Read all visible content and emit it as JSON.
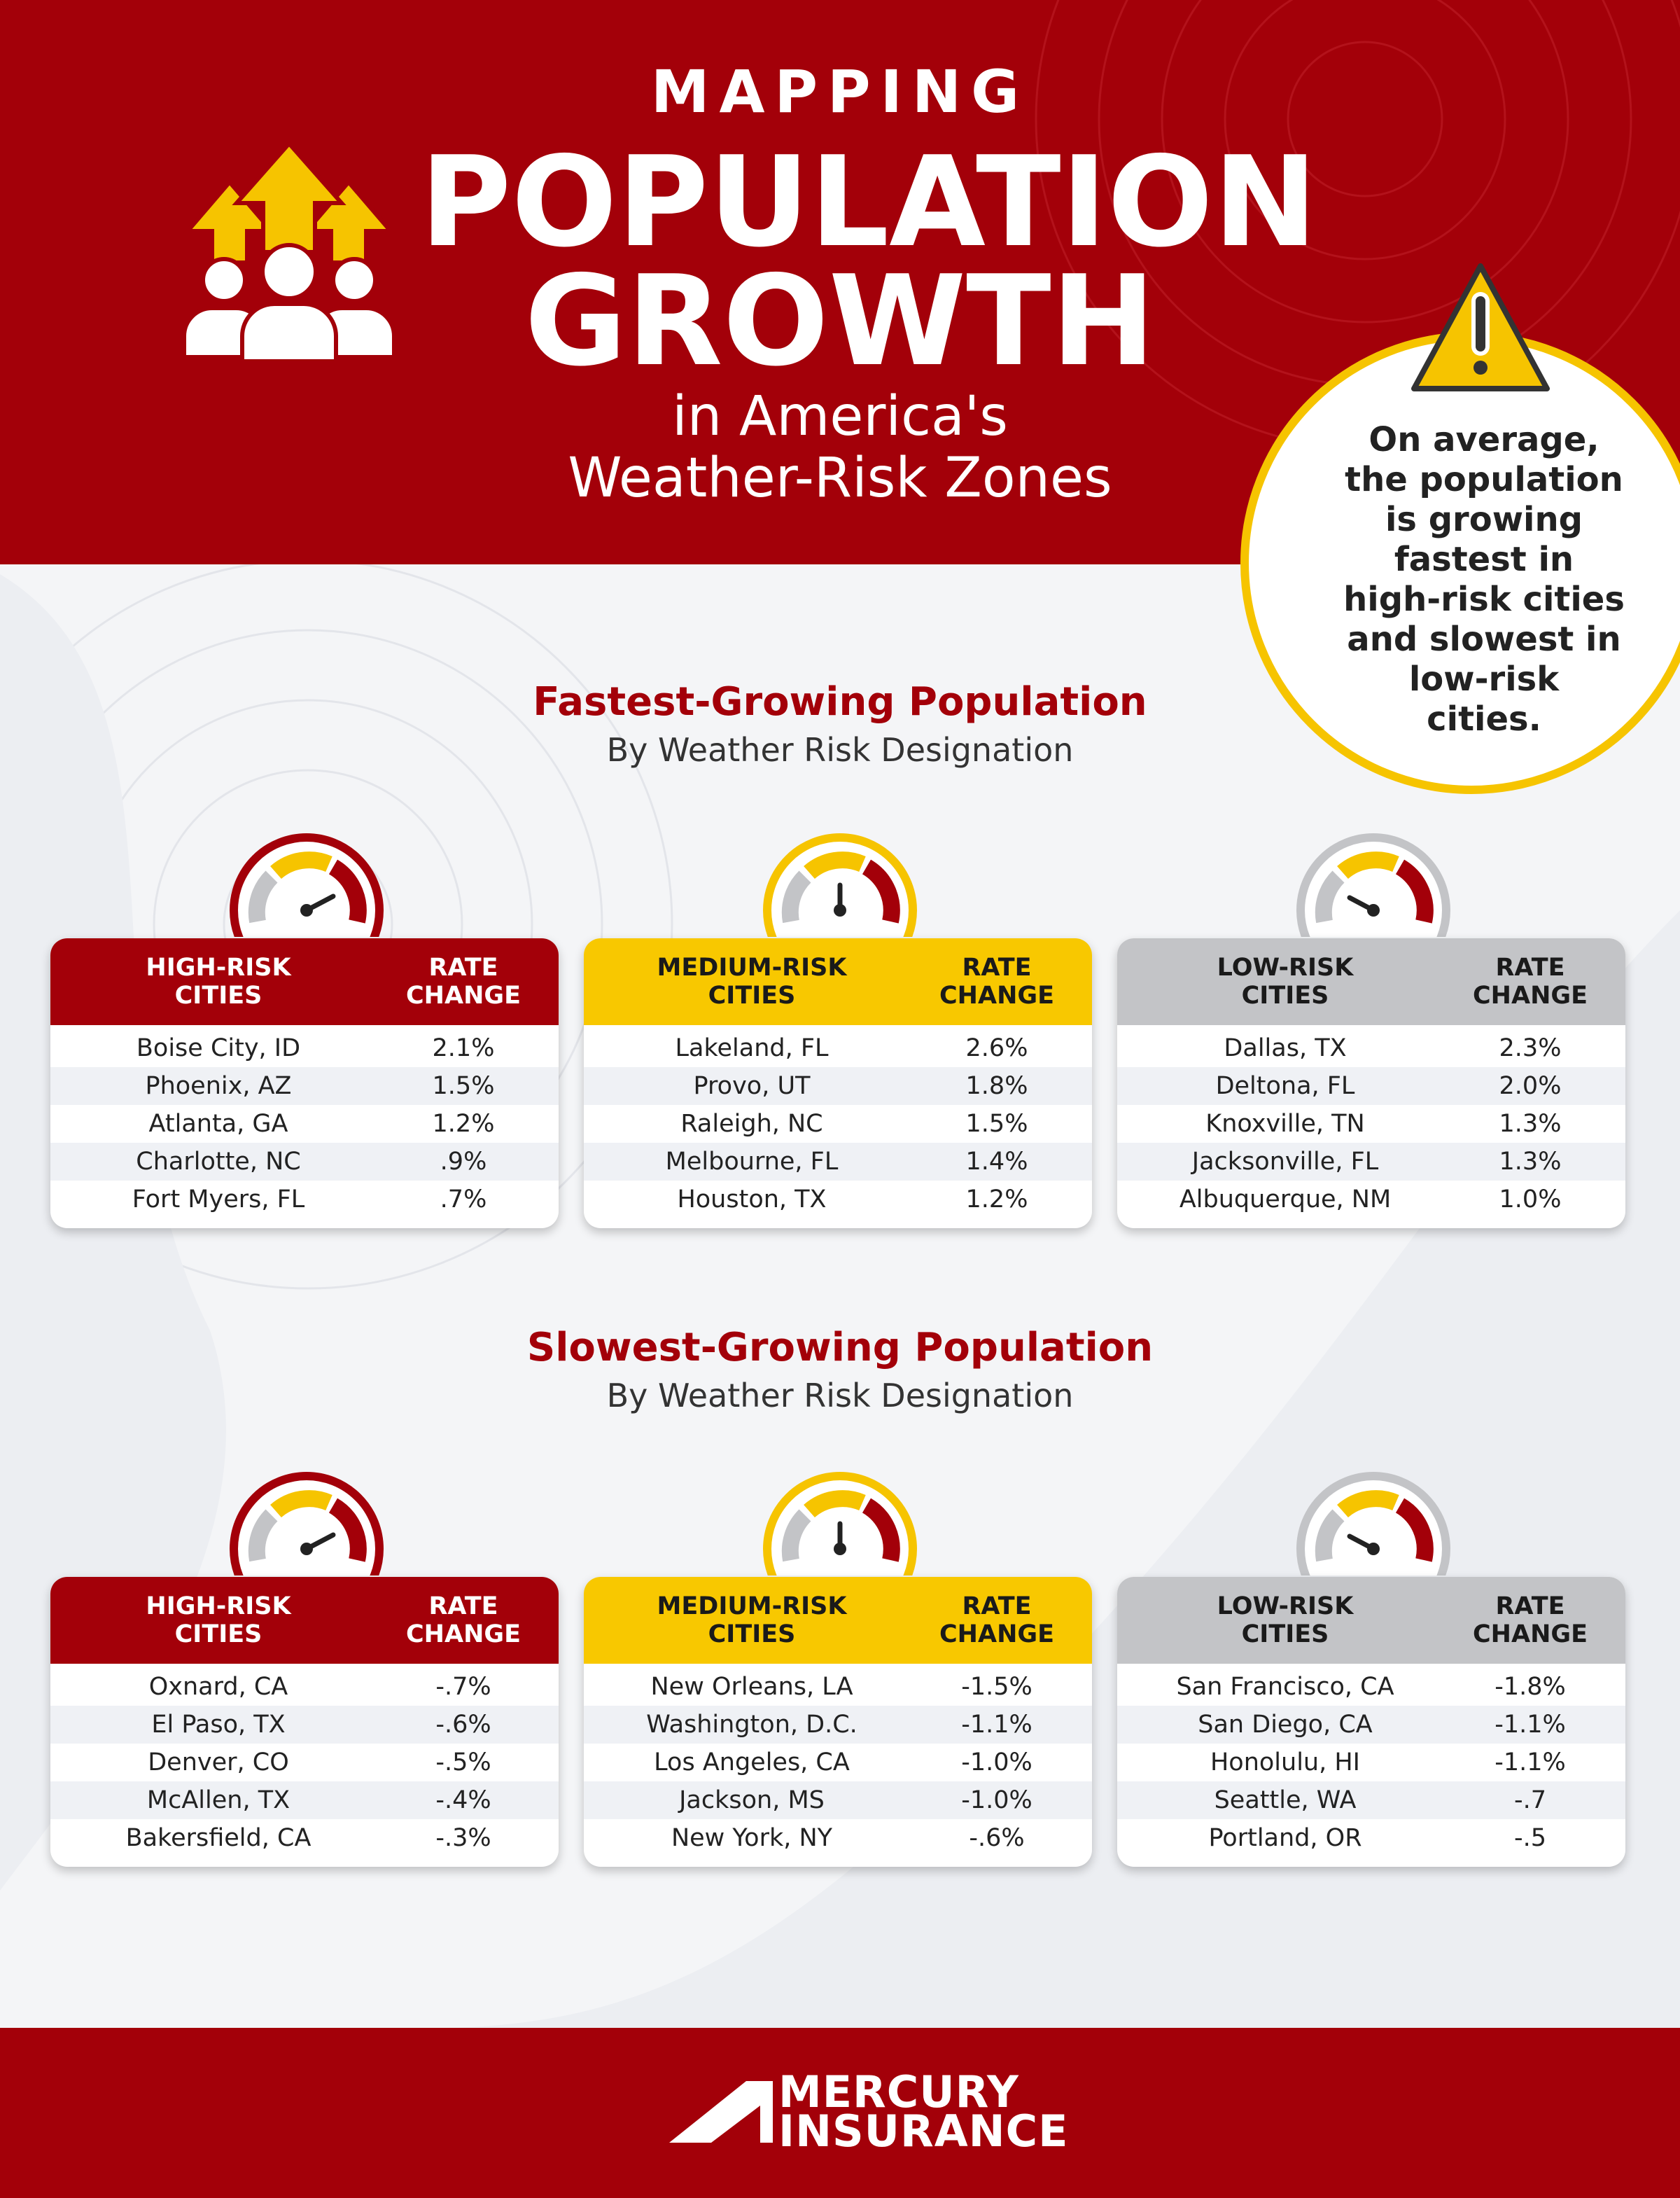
{
  "header": {
    "title_small": "MAPPING",
    "title_line1": "POPULATION",
    "title_line2": "GROWTH",
    "subtitle_line1": "in America's",
    "subtitle_line2": "Weather-Risk Zones"
  },
  "callout": {
    "lines": [
      "On average,",
      "the population",
      "is growing",
      "fastest in",
      "high-risk cities",
      "and slowest in",
      "low-risk",
      "cities."
    ]
  },
  "colors": {
    "red": "#a30009",
    "yellow": "#f8c800",
    "gray": "#c3c4c7"
  },
  "fastest": {
    "title": "Fastest-Growing Population",
    "subtitle": "By Weather Risk Designation",
    "high": {
      "city_header": "HIGH-RISK CITIES",
      "rate_header": "RATE CHANGE",
      "rows": [
        {
          "city": "Boise City, ID",
          "rate": "2.1%"
        },
        {
          "city": "Phoenix, AZ",
          "rate": "1.5%"
        },
        {
          "city": "Atlanta, GA",
          "rate": "1.2%"
        },
        {
          "city": "Charlotte, NC",
          "rate": ".9%"
        },
        {
          "city": "Fort Myers, FL",
          "rate": ".7%"
        }
      ]
    },
    "medium": {
      "city_header": "MEDIUM-RISK CITIES",
      "rate_header": "RATE CHANGE",
      "rows": [
        {
          "city": "Lakeland, FL",
          "rate": "2.6%"
        },
        {
          "city": "Provo, UT",
          "rate": "1.8%"
        },
        {
          "city": "Raleigh, NC",
          "rate": "1.5%"
        },
        {
          "city": "Melbourne, FL",
          "rate": "1.4%"
        },
        {
          "city": "Houston, TX",
          "rate": "1.2%"
        }
      ]
    },
    "low": {
      "city_header": "LOW-RISK CITIES",
      "rate_header": "RATE CHANGE",
      "rows": [
        {
          "city": "Dallas, TX",
          "rate": "2.3%"
        },
        {
          "city": "Deltona, FL",
          "rate": "2.0%"
        },
        {
          "city": "Knoxville, TN",
          "rate": "1.3%"
        },
        {
          "city": "Jacksonville, FL",
          "rate": "1.3%"
        },
        {
          "city": "Albuquerque, NM",
          "rate": "1.0%"
        }
      ]
    }
  },
  "slowest": {
    "title": "Slowest-Growing Population",
    "subtitle": "By Weather Risk Designation",
    "high": {
      "city_header": "HIGH-RISK CITIES",
      "rate_header": "RATE CHANGE",
      "rows": [
        {
          "city": "Oxnard, CA",
          "rate": "-.7%"
        },
        {
          "city": "El Paso, TX",
          "rate": "-.6%"
        },
        {
          "city": "Denver, CO",
          "rate": "-.5%"
        },
        {
          "city": "McAllen, TX",
          "rate": "-.4%"
        },
        {
          "city": "Bakersfield, CA",
          "rate": "-.3%"
        }
      ]
    },
    "medium": {
      "city_header": "MEDIUM-RISK CITIES",
      "rate_header": "RATE CHANGE",
      "rows": [
        {
          "city": "New Orleans, LA",
          "rate": "-1.5%"
        },
        {
          "city": "Washington, D.C.",
          "rate": "-1.1%"
        },
        {
          "city": "Los Angeles, CA",
          "rate": "-1.0%"
        },
        {
          "city": "Jackson, MS",
          "rate": "-1.0%"
        },
        {
          "city": "New York, NY",
          "rate": "-.6%"
        }
      ]
    },
    "low": {
      "city_header": "LOW-RISK CITIES",
      "rate_header": "RATE CHANGE",
      "rows": [
        {
          "city": "San Francisco, CA",
          "rate": "-1.8%"
        },
        {
          "city": "San Diego, CA",
          "rate": "-1.1%"
        },
        {
          "city": "Honolulu, HI",
          "rate": "-1.1%"
        },
        {
          "city": "Seattle, WA",
          "rate": "-.7"
        },
        {
          "city": "Portland, OR",
          "rate": "-.5"
        }
      ]
    }
  },
  "footer": {
    "logo_line1": "MERCURY",
    "logo_line2": "INSURANCE"
  }
}
